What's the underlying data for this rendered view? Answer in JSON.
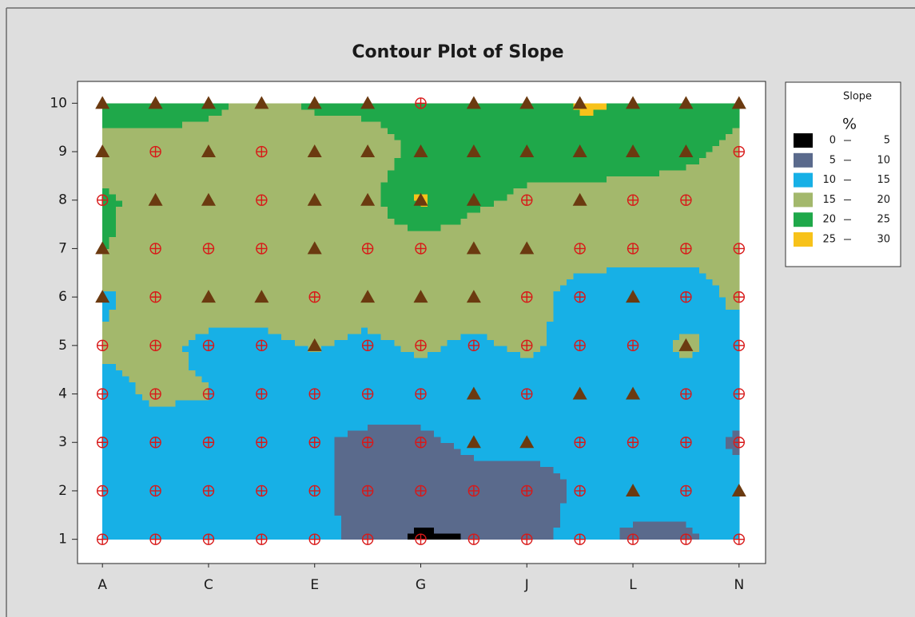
{
  "chart_data": {
    "type": "contour",
    "title": "Contour Plot of Slope",
    "categories": [
      "A",
      null,
      "C",
      null,
      "E",
      null,
      "G",
      null,
      "J",
      null,
      "L",
      null,
      "N"
    ],
    "y": [
      1,
      2,
      3,
      4,
      5,
      6,
      7,
      8,
      9,
      10
    ],
    "ylim": [
      0.5,
      10.45
    ],
    "yticks": [
      1,
      2,
      3,
      4,
      5,
      6,
      7,
      8,
      9,
      10
    ],
    "z": [
      [
        12,
        12,
        12,
        12,
        12,
        8,
        4,
        5,
        8,
        12,
        9,
        9,
        12
      ],
      [
        12,
        12,
        12,
        12,
        11,
        8,
        8,
        8,
        8,
        10.5,
        12,
        12,
        13
      ],
      [
        12,
        12,
        12,
        12,
        10.5,
        9,
        9,
        11,
        11,
        11,
        12,
        12,
        9
      ],
      [
        13,
        16,
        15.2,
        13,
        12,
        12,
        12,
        12,
        12,
        12,
        12,
        12,
        12
      ],
      [
        16,
        16,
        14,
        14,
        15.3,
        14,
        16,
        14,
        16,
        13,
        13,
        16,
        13
      ],
      [
        14,
        17,
        17,
        17,
        17,
        17,
        16,
        17,
        17,
        13,
        13,
        13,
        16
      ],
      [
        20.5,
        17,
        17,
        17,
        17,
        17,
        17,
        17,
        17,
        17,
        16,
        16,
        16
      ],
      [
        21,
        18,
        18,
        18,
        18,
        18,
        26,
        21,
        19,
        19,
        18,
        18,
        18
      ],
      [
        18,
        18,
        18,
        18,
        18,
        18,
        21,
        22,
        22,
        22,
        22,
        21,
        19
      ],
      [
        22,
        22,
        21,
        19,
        20.5,
        21,
        21,
        21,
        21,
        26,
        24.5,
        21,
        21
      ]
    ],
    "markers": [
      [
        "circle",
        "circle",
        "circle",
        "circle",
        "circle",
        "circle",
        "circle",
        "circle",
        "circle",
        "circle",
        "circle",
        "circle",
        "circle"
      ],
      [
        "circle",
        "circle",
        "circle",
        "circle",
        "circle",
        "circle",
        "circle",
        "circle",
        "circle",
        "circle",
        "triangle",
        "circle",
        "triangle"
      ],
      [
        "circle",
        "circle",
        "circle",
        "circle",
        "circle",
        "circle",
        "circle",
        "triangle",
        "triangle",
        "circle",
        "circle",
        "circle",
        "circle"
      ],
      [
        "circle",
        "circle",
        "circle",
        "circle",
        "circle",
        "circle",
        "circle",
        "triangle",
        "circle",
        "triangle",
        "triangle",
        "circle",
        "circle"
      ],
      [
        "circle",
        "circle",
        "circle",
        "circle",
        "triangle",
        "circle",
        "circle",
        "circle",
        "circle",
        "circle",
        "circle",
        "triangle",
        "circle"
      ],
      [
        "triangle",
        "circle",
        "triangle",
        "triangle",
        "circle",
        "triangle",
        "triangle",
        "triangle",
        "circle",
        "circle",
        "triangle",
        "circle",
        "circle"
      ],
      [
        "triangle",
        "circle",
        "circle",
        "circle",
        "triangle",
        "circle",
        "circle",
        "triangle",
        "triangle",
        "circle",
        "circle",
        "circle",
        "circle"
      ],
      [
        "circle",
        "triangle",
        "triangle",
        "circle",
        "triangle",
        "triangle",
        "triangle",
        "triangle",
        "circle",
        "triangle",
        "circle",
        "circle",
        null
      ],
      [
        "triangle",
        "circle",
        "triangle",
        "circle",
        "triangle",
        "triangle",
        "triangle",
        "triangle",
        "triangle",
        "triangle",
        "triangle",
        "triangle",
        "circle"
      ],
      [
        "triangle",
        "triangle",
        "triangle",
        "triangle",
        "triangle",
        "triangle",
        "circle",
        "triangle",
        "triangle",
        "triangle",
        "triangle",
        "triangle",
        "triangle"
      ]
    ],
    "marker_colors": {
      "triangle": "#6b3a10",
      "circle": "#d81818"
    },
    "levels": [
      0,
      5,
      10,
      15,
      20,
      25,
      30
    ],
    "colors": [
      "#000000",
      "#5a6a8c",
      "#17b0e6",
      "#a3b86c",
      "#1fa84a",
      "#f7c21a"
    ],
    "legend_title": "Slope",
    "legend_unit": "%"
  }
}
